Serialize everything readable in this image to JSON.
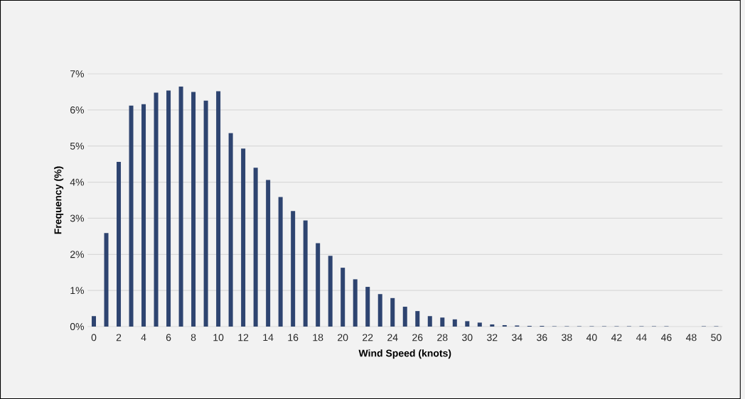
{
  "chart_data": {
    "type": "bar",
    "xlabel": "Wind Speed (knots)",
    "ylabel": "Frequency (%)",
    "categories": [
      "0",
      null,
      "2",
      null,
      "4",
      null,
      "6",
      null,
      "8",
      null,
      "10",
      null,
      "12",
      null,
      "14",
      null,
      "16",
      null,
      "18",
      null,
      "20",
      null,
      "22",
      null,
      "24",
      null,
      "26",
      null,
      "28",
      null,
      "30",
      null,
      "32",
      null,
      "34",
      null,
      "36",
      null,
      "38",
      null,
      "40",
      null,
      "42",
      null,
      "44",
      null,
      "46",
      null,
      "48",
      null,
      "50"
    ],
    "values": [
      0.29,
      2.59,
      4.56,
      6.12,
      6.16,
      6.48,
      6.54,
      6.65,
      6.5,
      6.26,
      6.52,
      5.36,
      4.93,
      4.4,
      4.06,
      3.59,
      3.2,
      2.94,
      2.31,
      1.96,
      1.63,
      1.31,
      1.1,
      0.9,
      0.79,
      0.55,
      0.43,
      0.29,
      0.25,
      0.2,
      0.15,
      0.11,
      0.06,
      0.04,
      0.03,
      0.02,
      0.02,
      0.01,
      0.01,
      0.01,
      0.01,
      0.01,
      0.01,
      0.01,
      0.01,
      0.01,
      0.01,
      0,
      0,
      0.01,
      0.01
    ],
    "color": "#2e4470",
    "ylim": [
      0,
      7
    ],
    "yticks": [
      {
        "value": 0,
        "label": "0%"
      },
      {
        "value": 1,
        "label": "1%"
      },
      {
        "value": 2,
        "label": "2%"
      },
      {
        "value": 3,
        "label": "3%"
      },
      {
        "value": 4,
        "label": "4%"
      },
      {
        "value": 5,
        "label": "5%"
      },
      {
        "value": 6,
        "label": "6%"
      },
      {
        "value": 7,
        "label": "7%"
      }
    ],
    "grid": "y"
  }
}
